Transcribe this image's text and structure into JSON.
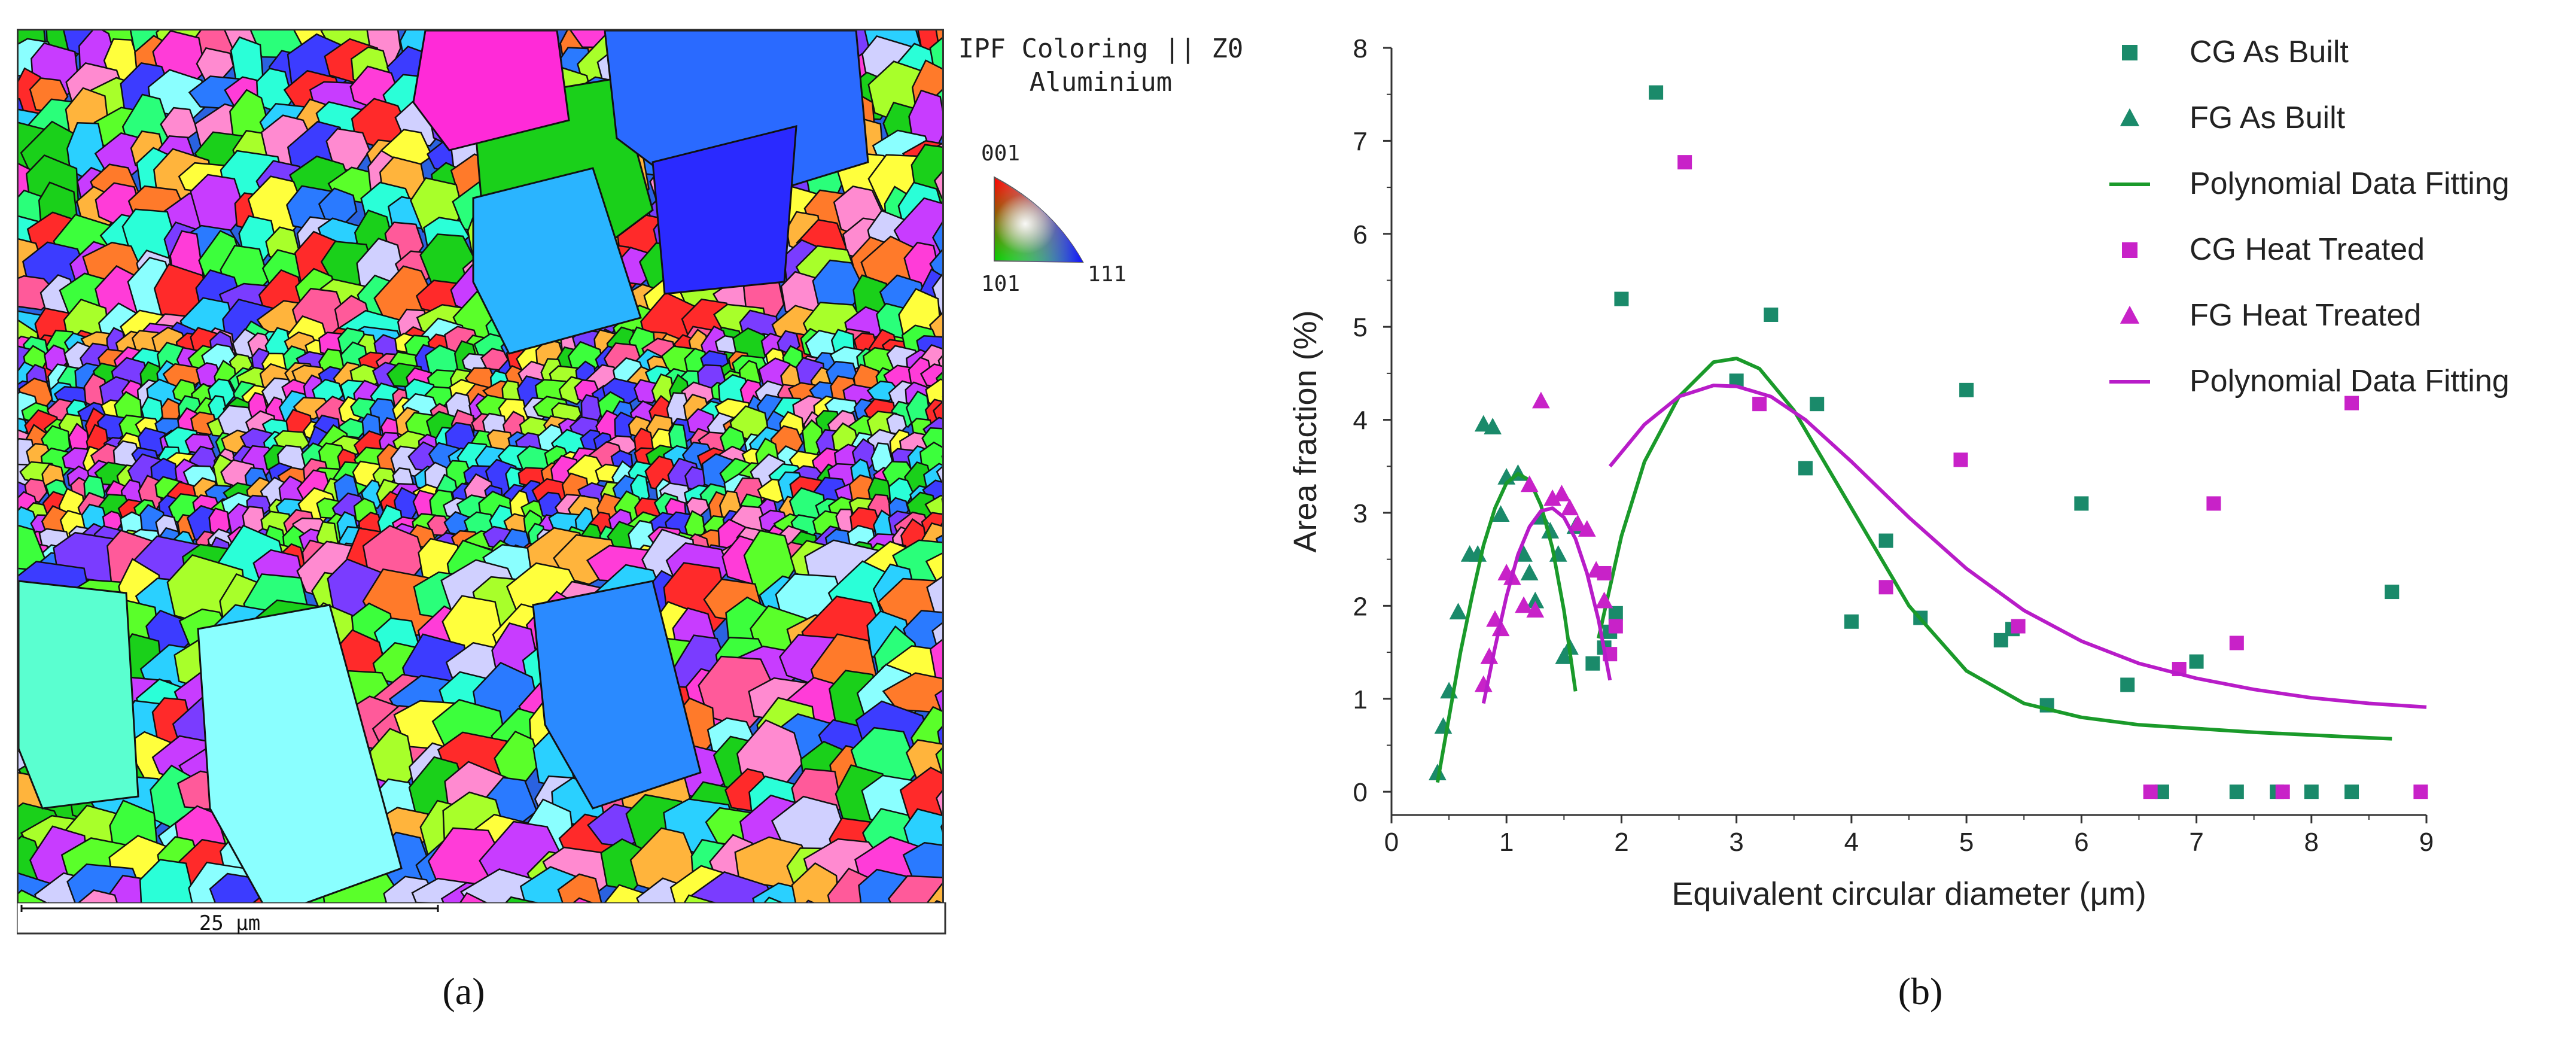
{
  "panel_a": {
    "caption": "(a)",
    "legend_title_line1": "IPF Coloring || Z0",
    "legend_title_line2": "Aluminium",
    "legend_corner_001": "001",
    "legend_corner_101": "101",
    "legend_corner_111": "111",
    "scale_bar_label": "25 μm"
  },
  "panel_b": {
    "caption": "(b)"
  },
  "chart_data": {
    "type": "scatter",
    "xlabel": "Equivalent circular diameter (μm)",
    "ylabel": "Area fraction (%)",
    "xlim": [
      0,
      9
    ],
    "ylim": [
      -0.25,
      8
    ],
    "xticks": [
      0,
      1,
      2,
      3,
      4,
      5,
      6,
      7,
      8,
      9
    ],
    "yticks": [
      0,
      1,
      2,
      3,
      4,
      5,
      6,
      7,
      8
    ],
    "grid": false,
    "legend_position": "top-right",
    "series": [
      {
        "name": "CG As Built",
        "kind": "points",
        "marker": "square",
        "color": "#1a8a6a",
        "points": [
          [
            1.75,
            1.38
          ],
          [
            1.85,
            1.55
          ],
          [
            1.9,
            1.72
          ],
          [
            1.95,
            1.92
          ],
          [
            2.0,
            5.3
          ],
          [
            2.3,
            7.52
          ],
          [
            3.0,
            4.42
          ],
          [
            3.3,
            5.13
          ],
          [
            3.6,
            3.48
          ],
          [
            3.7,
            4.17
          ],
          [
            4.0,
            1.83
          ],
          [
            4.3,
            2.7
          ],
          [
            4.6,
            1.87
          ],
          [
            5.0,
            4.32
          ],
          [
            5.3,
            1.63
          ],
          [
            5.4,
            1.75
          ],
          [
            5.7,
            0.93
          ],
          [
            6.0,
            3.1
          ],
          [
            6.4,
            1.15
          ],
          [
            6.7,
            0.0
          ],
          [
            7.0,
            1.4
          ],
          [
            7.35,
            0.0
          ],
          [
            7.7,
            0.0
          ],
          [
            8.0,
            0.0
          ],
          [
            8.35,
            0.0
          ],
          [
            8.7,
            2.15
          ]
        ]
      },
      {
        "name": "FG As Built",
        "kind": "points",
        "marker": "triangle",
        "color": "#1a8a6a",
        "points": [
          [
            0.4,
            0.2
          ],
          [
            0.45,
            0.7
          ],
          [
            0.5,
            1.08
          ],
          [
            0.58,
            1.93
          ],
          [
            0.68,
            2.55
          ],
          [
            0.75,
            2.55
          ],
          [
            0.8,
            3.95
          ],
          [
            0.88,
            3.92
          ],
          [
            0.95,
            2.98
          ],
          [
            1.0,
            3.38
          ],
          [
            1.1,
            3.42
          ],
          [
            1.15,
            2.55
          ],
          [
            1.2,
            2.35
          ],
          [
            1.25,
            2.05
          ],
          [
            1.3,
            2.95
          ],
          [
            1.38,
            2.8
          ],
          [
            1.45,
            2.55
          ],
          [
            1.5,
            1.45
          ],
          [
            1.55,
            1.55
          ],
          [
            1.6,
            2.85
          ]
        ]
      },
      {
        "name": "Polynomial Data Fitting",
        "kind": "curve",
        "color": "#1a9a2a",
        "segments": [
          [
            [
              0.4,
              0.1
            ],
            [
              0.5,
              0.8
            ],
            [
              0.6,
              1.5
            ],
            [
              0.7,
              2.1
            ],
            [
              0.8,
              2.65
            ],
            [
              0.9,
              3.05
            ],
            [
              1.0,
              3.32
            ],
            [
              1.1,
              3.42
            ],
            [
              1.2,
              3.35
            ],
            [
              1.3,
              3.08
            ],
            [
              1.4,
              2.62
            ],
            [
              1.5,
              1.95
            ],
            [
              1.6,
              1.08
            ]
          ],
          [
            [
              1.8,
              1.65
            ],
            [
              2.0,
              2.75
            ],
            [
              2.2,
              3.55
            ],
            [
              2.5,
              4.25
            ],
            [
              2.8,
              4.62
            ],
            [
              3.0,
              4.66
            ],
            [
              3.2,
              4.55
            ],
            [
              3.5,
              4.1
            ],
            [
              4.0,
              3.05
            ],
            [
              4.5,
              2.0
            ],
            [
              5.0,
              1.3
            ],
            [
              5.5,
              0.95
            ],
            [
              6.0,
              0.8
            ],
            [
              6.5,
              0.72
            ],
            [
              7.0,
              0.68
            ],
            [
              7.5,
              0.64
            ],
            [
              8.0,
              0.61
            ],
            [
              8.5,
              0.58
            ],
            [
              8.7,
              0.57
            ]
          ]
        ]
      },
      {
        "name": "CG Heat Treated",
        "kind": "points",
        "marker": "square",
        "color": "#c822c8",
        "points": [
          [
            1.85,
            2.35
          ],
          [
            1.9,
            1.48
          ],
          [
            1.95,
            1.78
          ],
          [
            2.55,
            6.77
          ],
          [
            3.2,
            4.17
          ],
          [
            4.3,
            2.2
          ],
          [
            4.95,
            3.57
          ],
          [
            5.45,
            1.78
          ],
          [
            6.6,
            0.0
          ],
          [
            6.85,
            1.32
          ],
          [
            7.15,
            3.1
          ],
          [
            7.35,
            1.6
          ],
          [
            7.75,
            0.0
          ],
          [
            8.35,
            4.18
          ],
          [
            8.95,
            0.0
          ]
        ]
      },
      {
        "name": "FG Heat Treated",
        "kind": "points",
        "marker": "triangle",
        "color": "#c822c8",
        "points": [
          [
            0.8,
            1.15
          ],
          [
            0.85,
            1.45
          ],
          [
            0.9,
            1.85
          ],
          [
            0.95,
            1.75
          ],
          [
            1.0,
            2.35
          ],
          [
            1.05,
            2.3
          ],
          [
            1.15,
            2.0
          ],
          [
            1.2,
            3.3
          ],
          [
            1.25,
            1.95
          ],
          [
            1.3,
            4.2
          ],
          [
            1.4,
            3.15
          ],
          [
            1.48,
            3.2
          ],
          [
            1.55,
            3.05
          ],
          [
            1.62,
            2.88
          ],
          [
            1.7,
            2.82
          ],
          [
            1.78,
            2.38
          ],
          [
            1.85,
            2.05
          ]
        ]
      },
      {
        "name": "Polynomial Data Fitting",
        "kind": "curve",
        "color": "#b81cc8",
        "segments": [
          [
            [
              0.8,
              0.95
            ],
            [
              0.9,
              1.55
            ],
            [
              1.0,
              2.1
            ],
            [
              1.1,
              2.55
            ],
            [
              1.2,
              2.85
            ],
            [
              1.3,
              3.02
            ],
            [
              1.4,
              3.05
            ],
            [
              1.5,
              2.95
            ],
            [
              1.6,
              2.72
            ],
            [
              1.7,
              2.35
            ],
            [
              1.8,
              1.85
            ],
            [
              1.9,
              1.2
            ]
          ],
          [
            [
              1.9,
              3.5
            ],
            [
              2.2,
              3.95
            ],
            [
              2.5,
              4.25
            ],
            [
              2.8,
              4.37
            ],
            [
              3.0,
              4.36
            ],
            [
              3.3,
              4.25
            ],
            [
              3.6,
              4.0
            ],
            [
              4.0,
              3.55
            ],
            [
              4.5,
              2.95
            ],
            [
              5.0,
              2.4
            ],
            [
              5.5,
              1.95
            ],
            [
              6.0,
              1.62
            ],
            [
              6.5,
              1.38
            ],
            [
              7.0,
              1.22
            ],
            [
              7.5,
              1.1
            ],
            [
              8.0,
              1.01
            ],
            [
              8.5,
              0.95
            ],
            [
              9.0,
              0.91
            ]
          ]
        ]
      }
    ]
  }
}
